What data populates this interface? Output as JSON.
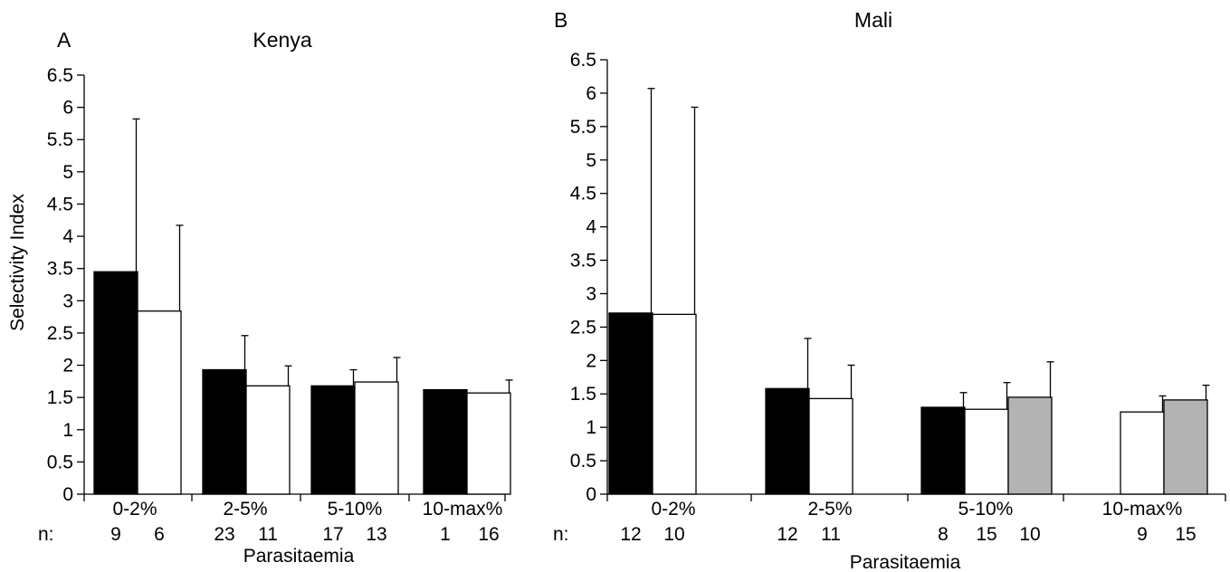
{
  "chart_data": [
    {
      "type": "bar",
      "panel": "A",
      "title": "Kenya",
      "xlabel": "Parasitaemia",
      "ylabel": "Selectivity Index",
      "ylim": [
        0,
        6.5
      ],
      "yticks": [
        "0",
        "0.5",
        "1",
        "1.5",
        "2",
        "2.5",
        "3",
        "3.5",
        "4",
        "4.5",
        "5",
        "5.5",
        "6",
        "6.5"
      ],
      "n_prefix": "n:",
      "categories": [
        "0-2%",
        "2-5%",
        "5-10%",
        "10-max%"
      ],
      "series": [
        {
          "color": "#000000",
          "values": [
            3.45,
            1.93,
            1.68,
            1.62
          ],
          "errors": [
            2.37,
            0.53,
            0.25,
            null
          ],
          "n": [
            "9",
            "23",
            "17",
            "1"
          ]
        },
        {
          "color": "#ffffff",
          "values": [
            2.84,
            1.68,
            1.74,
            1.57
          ],
          "errors": [
            1.33,
            0.31,
            0.38,
            0.2
          ],
          "n": [
            "6",
            "11",
            "13",
            "16"
          ]
        }
      ]
    },
    {
      "type": "bar",
      "panel": "B",
      "title": "Mali",
      "xlabel": "Parasitaemia",
      "ylabel": "",
      "ylim": [
        0,
        6.5
      ],
      "yticks": [
        "0",
        "0.5",
        "1",
        "1.5",
        "2",
        "2.5",
        "3",
        "3.5",
        "4",
        "4.5",
        "5",
        "5.5",
        "6",
        "6.5"
      ],
      "n_prefix": "n:",
      "categories": [
        "0-2%",
        "2-5%",
        "5-10%",
        "10-max%"
      ],
      "series": [
        {
          "color": "#000000",
          "values": [
            2.71,
            1.58,
            1.3,
            null
          ],
          "errors": [
            3.36,
            0.75,
            0.22,
            null
          ],
          "n": [
            "12",
            "12",
            "8",
            ""
          ]
        },
        {
          "color": "#ffffff",
          "values": [
            2.69,
            1.43,
            1.27,
            1.23
          ],
          "errors": [
            3.1,
            0.5,
            0.4,
            0.24
          ],
          "n": [
            "10",
            "11",
            "15",
            "9"
          ]
        },
        {
          "color": "#b3b3b3",
          "values": [
            null,
            null,
            1.45,
            1.41
          ],
          "errors": [
            null,
            null,
            0.53,
            0.22
          ],
          "n": [
            "",
            "",
            "10",
            "15"
          ]
        }
      ]
    }
  ]
}
